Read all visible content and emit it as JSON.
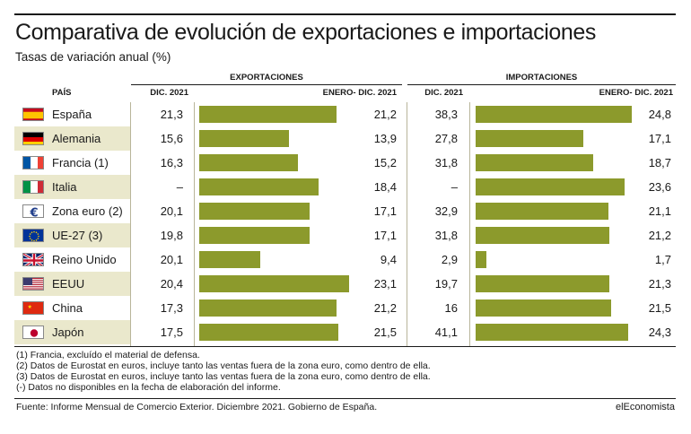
{
  "header": {
    "title": "Comparativa de evolución de exportaciones e importaciones",
    "subtitle": "Tasas de variación anual (%)"
  },
  "columns": {
    "country": "PAÍS",
    "exports_group": "EXPORTACIONES",
    "imports_group": "IMPORTACIONES",
    "exp_dec": "DIC. 2021",
    "exp_year": "ENERO- DIC. 2021",
    "imp_dec": "DIC. 2021",
    "imp_year": "ENERO- DIC. 2021"
  },
  "chart_data": {
    "type": "bar",
    "categories": [
      "España",
      "Alemania",
      "Francia (1)",
      "Italia",
      "Zona euro (2)",
      "UE-27 (3)",
      "Reino Unido",
      "EEUU",
      "China",
      "Japón"
    ],
    "flags": [
      "es",
      "de",
      "fr",
      "it",
      "euro-symbol",
      "eu",
      "uk",
      "us",
      "cn",
      "jp"
    ],
    "exports_dec_2021": [
      "21,3",
      "15,6",
      "16,3",
      "–",
      "20,1",
      "19,8",
      "20,1",
      "20,4",
      "17,3",
      "17,5"
    ],
    "exports_jan_dec_2021": [
      21.2,
      13.9,
      15.2,
      18.4,
      17.1,
      17.1,
      9.4,
      23.1,
      21.2,
      21.5
    ],
    "exports_jan_dec_2021_labels": [
      "21,2",
      "13,9",
      "15,2",
      "18,4",
      "17,1",
      "17,1",
      "9,4",
      "23,1",
      "21,2",
      "21,5"
    ],
    "imports_dec_2021": [
      "38,3",
      "27,8",
      "31,8",
      "–",
      "32,9",
      "31,8",
      "2,9",
      "19,7",
      "16",
      "41,1"
    ],
    "imports_jan_dec_2021": [
      24.8,
      17.1,
      18.7,
      23.6,
      21.1,
      21.2,
      1.7,
      21.3,
      21.5,
      24.3
    ],
    "imports_jan_dec_2021_labels": [
      "24,8",
      "17,1",
      "18,7",
      "23,6",
      "21,1",
      "21,2",
      "1,7",
      "21,3",
      "21,5",
      "24,3"
    ],
    "bar_color": "#8c9a2c",
    "row_alt_color": "#eae8cc"
  },
  "notes": [
    "(1) Francia, excluído el material de defensa.",
    "(2) Datos de Eurostat en euros, incluye tanto las ventas fuera de la zona euro, como dentro de ella.",
    "(3) Datos de Eurostat en euros, incluye tanto las ventas fuera de la zona euro, como dentro de ella.",
    "(-) Datos no disponibles en la fecha de elaboración del informe."
  ],
  "footer": {
    "source": "Fuente: Informe Mensual de Comercio Exterior. Diciembre 2021. Gobierno de España.",
    "brand": "elEconomista"
  }
}
